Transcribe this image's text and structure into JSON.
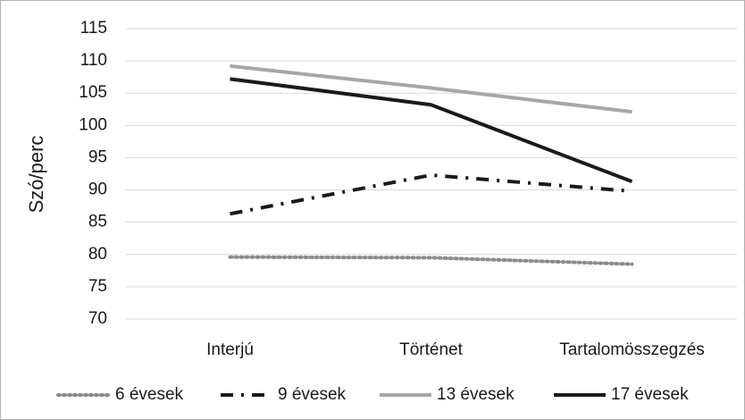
{
  "chart_data": {
    "type": "line",
    "ylabel": "Szó/perc",
    "categories": [
      "Interjú",
      "Történet",
      "Tartalomösszegzés"
    ],
    "series": [
      {
        "name": "6 évesek",
        "color": "#8c8c8c",
        "style": "dotted",
        "values": [
          79.6,
          79.5,
          78.5
        ]
      },
      {
        "name": "9 évesek",
        "color": "#1a1a1a",
        "style": "dashdot",
        "values": [
          86.3,
          92.3,
          89.8
        ]
      },
      {
        "name": "13 évesek",
        "color": "#a6a6a6",
        "style": "solid",
        "values": [
          109.2,
          105.8,
          102.1
        ]
      },
      {
        "name": "17 évesek",
        "color": "#1a1a1a",
        "style": "solid",
        "values": [
          107.2,
          103.2,
          91.3
        ]
      }
    ],
    "ylim": [
      70,
      115
    ],
    "yticks": [
      70,
      75,
      80,
      85,
      90,
      95,
      100,
      105,
      110,
      115
    ],
    "grid": true,
    "legend": "bottom"
  }
}
